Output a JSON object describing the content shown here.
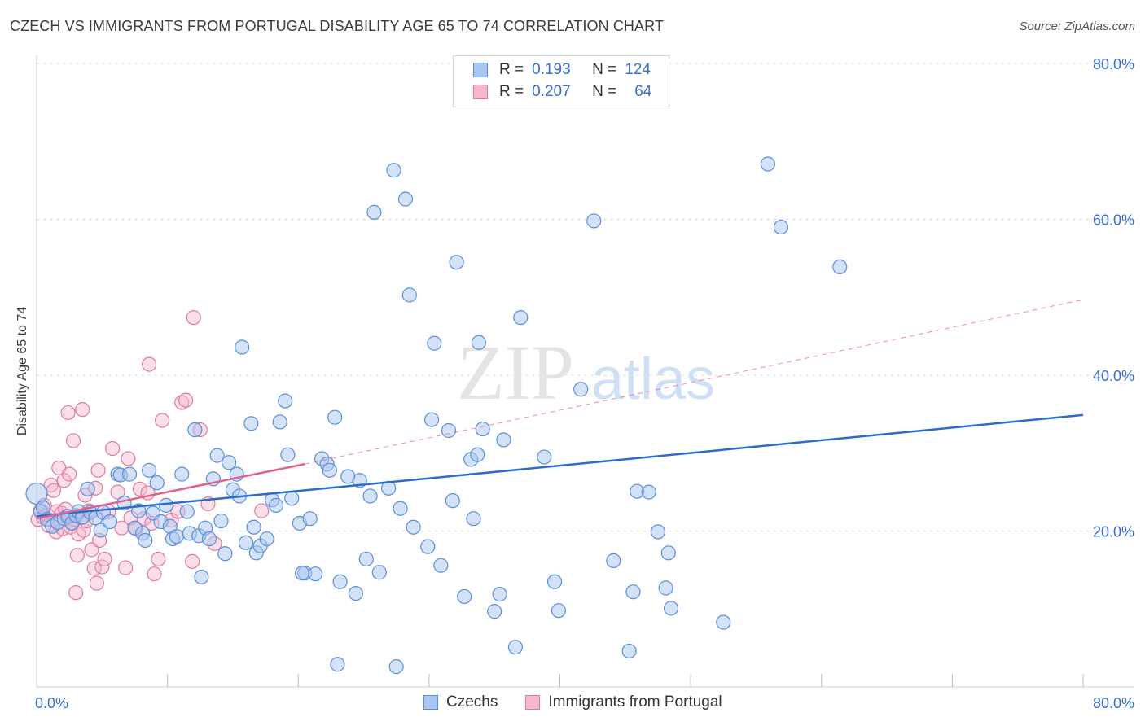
{
  "header": {
    "title": "CZECH VS IMMIGRANTS FROM PORTUGAL DISABILITY AGE 65 TO 74 CORRELATION CHART",
    "source": "Source: ZipAtlas.com"
  },
  "legend": {
    "r_label": "R =",
    "n_label": "N =",
    "series": [
      {
        "r": "0.193",
        "n": "124"
      },
      {
        "r": "0.207",
        "n": "64"
      }
    ]
  },
  "watermark": {
    "zip": "ZIP",
    "atlas": "atlas"
  },
  "colors": {
    "czech_fill": "#a9c6f2",
    "czech_stroke": "#5a8fd8",
    "czech_line": "#2a6dcc",
    "portugal_fill": "#f6b8cc",
    "portugal_stroke": "#e07ba0",
    "portugal_line": "#e0608e",
    "axis_text": "#3a6fd0",
    "grid": "#dddddd"
  },
  "chart_data": {
    "type": "scatter",
    "title": "CZECH VS IMMIGRANTS FROM PORTUGAL DISABILITY AGE 65 TO 74 CORRELATION CHART",
    "xlabel": "",
    "ylabel": "Disability Age 65 to 74",
    "xlim": [
      0,
      80
    ],
    "ylim": [
      0,
      80
    ],
    "x_tick_labels": [
      "0.0%",
      "80.0%"
    ],
    "y_tick_labels": [
      "20.0%",
      "40.0%",
      "60.0%",
      "80.0%"
    ],
    "y_ticks": [
      20,
      40,
      60,
      80
    ],
    "grid": true,
    "legend_position": "top-center",
    "series": [
      {
        "name": "Czechs",
        "r": 0.193,
        "n": 124,
        "trend": {
          "x": [
            0,
            80
          ],
          "y": [
            21.9,
            34.9
          ],
          "style": "solid"
        },
        "points": [
          [
            0.0,
            24.8
          ],
          [
            0.3,
            22.5
          ],
          [
            0.5,
            23.0
          ],
          [
            0.8,
            21.5
          ],
          [
            1.2,
            20.6
          ],
          [
            1.6,
            21.1
          ],
          [
            2.1,
            21.6
          ],
          [
            2.4,
            21.9
          ],
          [
            2.7,
            21.0
          ],
          [
            3.0,
            22.0
          ],
          [
            3.2,
            22.5
          ],
          [
            3.5,
            21.8
          ],
          [
            3.9,
            25.4
          ],
          [
            4.1,
            22.4
          ],
          [
            4.5,
            21.7
          ],
          [
            4.9,
            20.1
          ],
          [
            5.1,
            22.4
          ],
          [
            5.6,
            21.2
          ],
          [
            6.2,
            27.3
          ],
          [
            6.4,
            27.2
          ],
          [
            6.7,
            23.6
          ],
          [
            7.1,
            27.3
          ],
          [
            7.5,
            20.4
          ],
          [
            7.8,
            22.6
          ],
          [
            8.1,
            19.7
          ],
          [
            8.3,
            18.8
          ],
          [
            8.6,
            27.8
          ],
          [
            8.9,
            22.3
          ],
          [
            9.2,
            26.2
          ],
          [
            9.5,
            21.2
          ],
          [
            9.9,
            23.3
          ],
          [
            10.2,
            20.6
          ],
          [
            10.4,
            19.0
          ],
          [
            10.7,
            19.3
          ],
          [
            11.1,
            27.3
          ],
          [
            11.5,
            22.5
          ],
          [
            11.7,
            19.7
          ],
          [
            12.1,
            33.0
          ],
          [
            12.4,
            19.4
          ],
          [
            12.6,
            14.1
          ],
          [
            12.9,
            20.4
          ],
          [
            13.2,
            19.0
          ],
          [
            13.5,
            26.7
          ],
          [
            13.8,
            29.7
          ],
          [
            14.1,
            21.3
          ],
          [
            14.4,
            17.1
          ],
          [
            14.7,
            28.8
          ],
          [
            15.0,
            25.3
          ],
          [
            15.3,
            27.3
          ],
          [
            15.5,
            24.5
          ],
          [
            15.7,
            43.6
          ],
          [
            16.0,
            18.5
          ],
          [
            16.4,
            33.8
          ],
          [
            16.8,
            17.2
          ],
          [
            17.1,
            18.1
          ],
          [
            17.6,
            19.0
          ],
          [
            18.0,
            24.0
          ],
          [
            18.3,
            23.3
          ],
          [
            18.6,
            34.0
          ],
          [
            19.0,
            36.7
          ],
          [
            19.2,
            29.8
          ],
          [
            19.5,
            24.2
          ],
          [
            20.1,
            21.0
          ],
          [
            20.5,
            14.6
          ],
          [
            20.9,
            21.6
          ],
          [
            21.3,
            14.5
          ],
          [
            21.8,
            29.3
          ],
          [
            22.2,
            28.6
          ],
          [
            22.4,
            27.8
          ],
          [
            22.8,
            34.6
          ],
          [
            23.2,
            13.5
          ],
          [
            23.8,
            27.0
          ],
          [
            24.4,
            12.0
          ],
          [
            24.7,
            26.5
          ],
          [
            25.2,
            16.4
          ],
          [
            25.5,
            24.5
          ],
          [
            25.8,
            60.9
          ],
          [
            26.2,
            14.7
          ],
          [
            26.9,
            25.5
          ],
          [
            27.3,
            66.3
          ],
          [
            27.5,
            2.6
          ],
          [
            27.8,
            22.9
          ],
          [
            28.2,
            62.6
          ],
          [
            28.5,
            50.3
          ],
          [
            28.8,
            20.5
          ],
          [
            29.9,
            18.0
          ],
          [
            30.2,
            34.3
          ],
          [
            30.4,
            44.1
          ],
          [
            30.9,
            15.6
          ],
          [
            31.5,
            32.9
          ],
          [
            31.8,
            23.9
          ],
          [
            32.1,
            54.5
          ],
          [
            32.7,
            11.6
          ],
          [
            33.2,
            29.2
          ],
          [
            33.4,
            21.6
          ],
          [
            33.7,
            29.8
          ],
          [
            33.8,
            44.2
          ],
          [
            34.1,
            33.1
          ],
          [
            35.0,
            9.7
          ],
          [
            35.4,
            11.9
          ],
          [
            35.7,
            31.7
          ],
          [
            36.6,
            5.1
          ],
          [
            37.0,
            47.4
          ],
          [
            38.8,
            29.5
          ],
          [
            39.6,
            13.5
          ],
          [
            39.9,
            9.8
          ],
          [
            41.6,
            38.2
          ],
          [
            42.6,
            59.8
          ],
          [
            44.1,
            16.2
          ],
          [
            45.3,
            4.6
          ],
          [
            45.6,
            12.2
          ],
          [
            45.9,
            25.1
          ],
          [
            46.8,
            25.0
          ],
          [
            47.5,
            19.9
          ],
          [
            48.1,
            12.7
          ],
          [
            48.3,
            17.2
          ],
          [
            48.5,
            10.1
          ],
          [
            52.5,
            8.3
          ],
          [
            55.9,
            67.1
          ],
          [
            56.9,
            59.0
          ],
          [
            61.4,
            53.9
          ],
          [
            23.0,
            2.9
          ],
          [
            20.3,
            14.6
          ],
          [
            16.6,
            20.5
          ]
        ]
      },
      {
        "name": "Immigrants from Portugal",
        "r": 0.207,
        "n": 64,
        "trend": {
          "x": [
            0,
            20.5
          ],
          "y": [
            21.6,
            28.6
          ],
          "style": "solid"
        },
        "trend_extension": {
          "x": [
            20.5,
            80
          ],
          "y": [
            28.6,
            49.7
          ],
          "style": "dashed"
        },
        "points": [
          [
            0.1,
            21.5
          ],
          [
            0.3,
            22.6
          ],
          [
            0.5,
            21.8
          ],
          [
            0.6,
            23.3
          ],
          [
            0.8,
            22.1
          ],
          [
            0.9,
            20.7
          ],
          [
            1.1,
            25.9
          ],
          [
            1.3,
            25.2
          ],
          [
            1.5,
            19.9
          ],
          [
            1.5,
            22.5
          ],
          [
            1.7,
            28.1
          ],
          [
            1.9,
            22.3
          ],
          [
            2.0,
            20.3
          ],
          [
            2.1,
            26.5
          ],
          [
            2.2,
            22.8
          ],
          [
            2.3,
            21.9
          ],
          [
            2.4,
            35.2
          ],
          [
            2.5,
            27.3
          ],
          [
            2.6,
            20.5
          ],
          [
            2.8,
            31.6
          ],
          [
            2.9,
            21.5
          ],
          [
            3.0,
            12.1
          ],
          [
            3.1,
            16.9
          ],
          [
            3.2,
            19.6
          ],
          [
            3.4,
            21.7
          ],
          [
            3.5,
            35.6
          ],
          [
            3.6,
            20.1
          ],
          [
            3.7,
            24.6
          ],
          [
            3.8,
            21.3
          ],
          [
            4.0,
            22.6
          ],
          [
            4.2,
            17.6
          ],
          [
            4.4,
            15.2
          ],
          [
            4.5,
            25.5
          ],
          [
            4.6,
            13.3
          ],
          [
            4.7,
            27.8
          ],
          [
            4.8,
            18.8
          ],
          [
            5.0,
            15.4
          ],
          [
            5.2,
            16.4
          ],
          [
            5.5,
            22.5
          ],
          [
            5.8,
            30.6
          ],
          [
            6.2,
            25.0
          ],
          [
            6.5,
            20.4
          ],
          [
            6.8,
            15.3
          ],
          [
            7.0,
            29.3
          ],
          [
            7.2,
            21.7
          ],
          [
            7.6,
            20.3
          ],
          [
            7.9,
            25.4
          ],
          [
            8.2,
            21.6
          ],
          [
            8.5,
            24.9
          ],
          [
            8.6,
            41.4
          ],
          [
            8.8,
            21.0
          ],
          [
            9.0,
            14.5
          ],
          [
            9.3,
            16.4
          ],
          [
            9.6,
            34.2
          ],
          [
            10.3,
            21.4
          ],
          [
            10.8,
            22.5
          ],
          [
            11.1,
            36.5
          ],
          [
            11.4,
            36.8
          ],
          [
            11.9,
            16.1
          ],
          [
            12.0,
            47.4
          ],
          [
            12.5,
            33.0
          ],
          [
            13.1,
            23.5
          ],
          [
            13.6,
            18.4
          ],
          [
            17.2,
            22.6
          ]
        ]
      }
    ]
  }
}
